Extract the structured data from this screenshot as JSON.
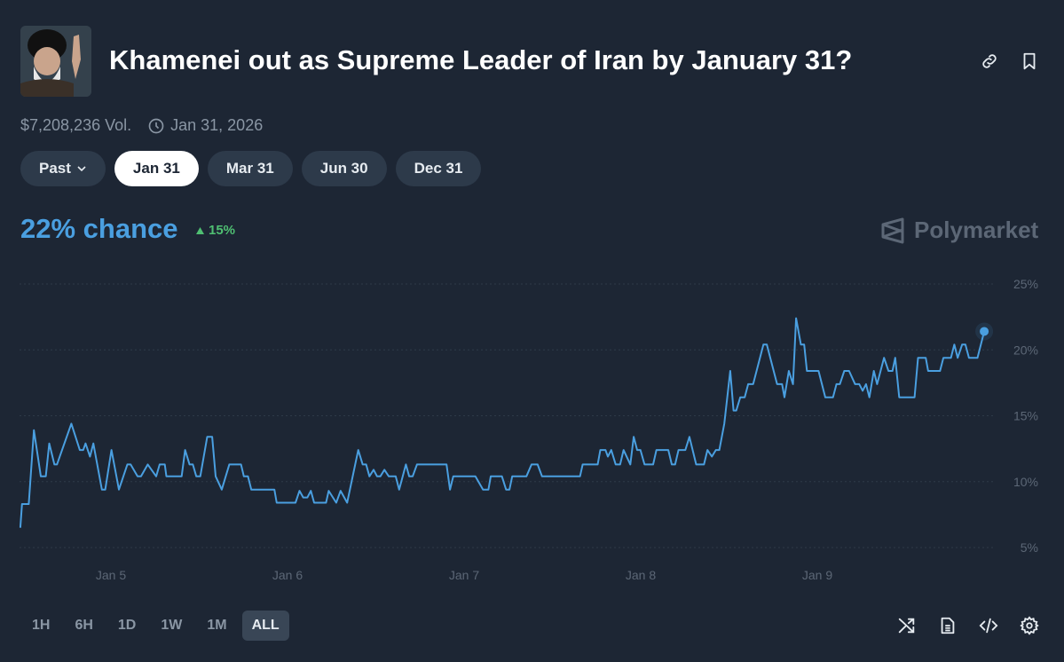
{
  "header": {
    "title": "Khamenei out as Supreme Leader of Iran by January 31?",
    "avatar_icon": "portrait-image",
    "actions": [
      {
        "icon": "link-icon"
      },
      {
        "icon": "bookmark-icon"
      }
    ],
    "volume": "$7,208,236 Vol.",
    "end_date": "Jan 31, 2026"
  },
  "date_tabs": [
    {
      "label": "Past",
      "dropdown": true,
      "active": false
    },
    {
      "label": "Jan 31",
      "active": true
    },
    {
      "label": "Mar 31",
      "active": false
    },
    {
      "label": "Jun 30",
      "active": false
    },
    {
      "label": "Dec 31",
      "active": false
    }
  ],
  "summary": {
    "chance": "22% chance",
    "delta": "15%",
    "delta_direction": "up",
    "delta_color": "#4fbf72"
  },
  "brand": "Polymarket",
  "ranges": [
    {
      "label": "1H"
    },
    {
      "label": "6H"
    },
    {
      "label": "1D"
    },
    {
      "label": "1W"
    },
    {
      "label": "1M"
    },
    {
      "label": "ALL",
      "active": true
    }
  ],
  "tools": [
    "shuffle-icon",
    "document-icon",
    "code-icon",
    "gear-icon"
  ],
  "chart_data": {
    "type": "line",
    "line_color": "#4a9fe0",
    "grid": true,
    "y_axis_position": "right",
    "ylim": [
      5,
      25
    ],
    "yticks": [
      "25%",
      "20%",
      "15%",
      "10%",
      "5%"
    ],
    "ytick_values": [
      25,
      20,
      15,
      10,
      5
    ],
    "xticks": [
      "Jan 5",
      "Jan 6",
      "Jan 7",
      "Jan 8",
      "Jan 9"
    ],
    "xtick_values": [
      "2026-01-05T00:00",
      "2026-01-06T00:00",
      "2026-01-07T00:00",
      "2026-01-08T00:00",
      "2026-01-09T00:00"
    ],
    "series": [
      {
        "points": [
          [
            "2026-01-04T11:41",
            6.5
          ],
          [
            "2026-01-04T11:55",
            8.3
          ],
          [
            "2026-01-04T12:50",
            8.3
          ],
          [
            "2026-01-04T13:32",
            13.9
          ],
          [
            "2026-01-04T14:28",
            10.4
          ],
          [
            "2026-01-04T15:09",
            10.4
          ],
          [
            "2026-01-04T15:37",
            12.9
          ],
          [
            "2026-01-04T16:19",
            11.3
          ],
          [
            "2026-01-04T16:40",
            11.3
          ],
          [
            "2026-01-04T18:37",
            14.4
          ],
          [
            "2026-01-04T19:46",
            12.4
          ],
          [
            "2026-01-04T20:14",
            12.4
          ],
          [
            "2026-01-04T20:33",
            12.9
          ],
          [
            "2026-01-04T21:09",
            11.9
          ],
          [
            "2026-01-04T21:37",
            12.9
          ],
          [
            "2026-01-04T22:46",
            9.4
          ],
          [
            "2026-01-04T23:14",
            9.4
          ],
          [
            "2026-01-05T00:04",
            12.4
          ],
          [
            "2026-01-05T01:05",
            9.4
          ],
          [
            "2026-01-05T02:14",
            11.3
          ],
          [
            "2026-01-05T02:41",
            11.3
          ],
          [
            "2026-01-05T03:37",
            10.4
          ],
          [
            "2026-01-05T04:05",
            10.4
          ],
          [
            "2026-01-05T05:00",
            11.3
          ],
          [
            "2026-01-05T06:09",
            10.4
          ],
          [
            "2026-01-05T06:37",
            11.3
          ],
          [
            "2026-01-05T07:19",
            11.3
          ],
          [
            "2026-01-05T07:32",
            10.4
          ],
          [
            "2026-01-05T09:37",
            10.4
          ],
          [
            "2026-01-05T10:05",
            12.4
          ],
          [
            "2026-01-05T10:41",
            11.3
          ],
          [
            "2026-01-05T11:08",
            11.3
          ],
          [
            "2026-01-05T11:36",
            10.4
          ],
          [
            "2026-01-05T12:09",
            10.4
          ],
          [
            "2026-01-05T13:05",
            13.4
          ],
          [
            "2026-01-05T13:46",
            13.4
          ],
          [
            "2026-01-05T14:14",
            10.4
          ],
          [
            "2026-01-05T15:04",
            9.4
          ],
          [
            "2026-01-05T16:05",
            11.3
          ],
          [
            "2026-01-05T17:41",
            11.3
          ],
          [
            "2026-01-05T18:04",
            10.4
          ],
          [
            "2026-01-05T18:37",
            10.4
          ],
          [
            "2026-01-05T19:05",
            9.4
          ],
          [
            "2026-01-05T22:13",
            9.4
          ],
          [
            "2026-01-05T22:32",
            8.4
          ],
          [
            "2026-01-06T01:05",
            8.4
          ],
          [
            "2026-01-06T01:38",
            9.3
          ],
          [
            "2026-01-06T02:08",
            8.8
          ],
          [
            "2026-01-06T02:42",
            8.8
          ],
          [
            "2026-01-06T03:10",
            9.3
          ],
          [
            "2026-01-06T03:37",
            8.4
          ],
          [
            "2026-01-06T05:14",
            8.4
          ],
          [
            "2026-01-06T05:36",
            9.3
          ],
          [
            "2026-01-06T06:37",
            8.4
          ],
          [
            "2026-01-06T07:13",
            9.3
          ],
          [
            "2026-01-06T08:06",
            8.4
          ],
          [
            "2026-01-06T09:37",
            12.4
          ],
          [
            "2026-01-06T10:13",
            11.3
          ],
          [
            "2026-01-06T10:41",
            11.3
          ],
          [
            "2026-01-06T11:08",
            10.4
          ],
          [
            "2026-01-06T11:42",
            10.9
          ],
          [
            "2026-01-06T12:10",
            10.4
          ],
          [
            "2026-01-06T12:37",
            10.4
          ],
          [
            "2026-01-06T13:10",
            10.9
          ],
          [
            "2026-01-06T13:46",
            10.4
          ],
          [
            "2026-01-06T14:42",
            10.4
          ],
          [
            "2026-01-06T15:10",
            9.4
          ],
          [
            "2026-01-06T16:05",
            11.3
          ],
          [
            "2026-01-06T16:32",
            10.4
          ],
          [
            "2026-01-06T17:00",
            10.4
          ],
          [
            "2026-01-06T17:36",
            11.3
          ],
          [
            "2026-01-06T21:37",
            11.3
          ],
          [
            "2026-01-06T22:05",
            9.4
          ],
          [
            "2026-01-06T22:32",
            10.4
          ],
          [
            "2026-01-07T01:32",
            10.4
          ],
          [
            "2026-01-07T02:34",
            9.4
          ],
          [
            "2026-01-07T03:18",
            9.4
          ],
          [
            "2026-01-07T03:37",
            10.4
          ],
          [
            "2026-01-07T05:08",
            10.4
          ],
          [
            "2026-01-07T05:42",
            9.4
          ],
          [
            "2026-01-07T06:10",
            9.4
          ],
          [
            "2026-01-07T06:32",
            10.4
          ],
          [
            "2026-01-07T08:28",
            10.4
          ],
          [
            "2026-01-07T09:10",
            11.3
          ],
          [
            "2026-01-07T09:59",
            11.3
          ],
          [
            "2026-01-07T10:35",
            10.4
          ],
          [
            "2026-01-07T15:45",
            10.4
          ],
          [
            "2026-01-07T16:07",
            11.3
          ],
          [
            "2026-01-07T18:09",
            11.3
          ],
          [
            "2026-01-07T18:31",
            12.4
          ],
          [
            "2026-01-07T19:13",
            12.4
          ],
          [
            "2026-01-07T19:32",
            11.9
          ],
          [
            "2026-01-07T20:00",
            12.4
          ],
          [
            "2026-01-07T20:36",
            11.3
          ],
          [
            "2026-01-07T21:12",
            11.3
          ],
          [
            "2026-01-07T21:40",
            12.4
          ],
          [
            "2026-01-07T22:35",
            11.3
          ],
          [
            "2026-01-07T23:03",
            13.4
          ],
          [
            "2026-01-07T23:31",
            12.4
          ],
          [
            "2026-01-07T23:58",
            12.4
          ],
          [
            "2026-01-08T00:31",
            11.3
          ],
          [
            "2026-01-08T01:41",
            11.3
          ],
          [
            "2026-01-08T02:08",
            12.4
          ],
          [
            "2026-01-08T03:45",
            12.4
          ],
          [
            "2026-01-08T04:13",
            11.3
          ],
          [
            "2026-01-08T04:41",
            11.3
          ],
          [
            "2026-01-08T05:08",
            12.4
          ],
          [
            "2026-01-08T06:04",
            12.4
          ],
          [
            "2026-01-08T06:37",
            13.4
          ],
          [
            "2026-01-08T07:32",
            11.3
          ],
          [
            "2026-01-08T08:36",
            11.3
          ],
          [
            "2026-01-08T09:04",
            12.4
          ],
          [
            "2026-01-08T09:40",
            11.9
          ],
          [
            "2026-01-08T10:13",
            12.4
          ],
          [
            "2026-01-08T10:41",
            12.4
          ],
          [
            "2026-01-08T11:22",
            14.4
          ],
          [
            "2026-01-08T12:10",
            18.4
          ],
          [
            "2026-01-08T12:37",
            15.4
          ],
          [
            "2026-01-08T12:59",
            15.4
          ],
          [
            "2026-01-08T13:32",
            16.4
          ],
          [
            "2026-01-08T14:08",
            16.4
          ],
          [
            "2026-01-08T14:36",
            17.4
          ],
          [
            "2026-01-08T15:17",
            17.4
          ],
          [
            "2026-01-08T16:41",
            20.4
          ],
          [
            "2026-01-08T17:08",
            20.4
          ],
          [
            "2026-01-08T18:32",
            17.4
          ],
          [
            "2026-01-08T19:13",
            17.4
          ],
          [
            "2026-01-08T19:32",
            16.4
          ],
          [
            "2026-01-08T20:08",
            18.4
          ],
          [
            "2026-01-08T20:42",
            17.4
          ],
          [
            "2026-01-08T21:07",
            22.4
          ],
          [
            "2026-01-08T21:46",
            20.4
          ],
          [
            "2026-01-08T22:13",
            20.4
          ],
          [
            "2026-01-08T22:35",
            18.4
          ],
          [
            "2026-01-09T00:10",
            18.4
          ],
          [
            "2026-01-09T01:05",
            16.4
          ],
          [
            "2026-01-09T02:08",
            16.4
          ],
          [
            "2026-01-09T02:36",
            17.4
          ],
          [
            "2026-01-09T03:04",
            17.4
          ],
          [
            "2026-01-09T03:40",
            18.4
          ],
          [
            "2026-01-09T04:19",
            18.4
          ],
          [
            "2026-01-09T05:08",
            17.4
          ],
          [
            "2026-01-09T05:42",
            17.4
          ],
          [
            "2026-01-09T06:10",
            16.9
          ],
          [
            "2026-01-09T06:37",
            17.4
          ],
          [
            "2026-01-09T07:05",
            16.4
          ],
          [
            "2026-01-09T07:41",
            18.4
          ],
          [
            "2026-01-09T08:08",
            17.4
          ],
          [
            "2026-01-09T09:04",
            19.4
          ],
          [
            "2026-01-09T09:40",
            18.4
          ],
          [
            "2026-01-09T10:13",
            18.4
          ],
          [
            "2026-01-09T10:35",
            19.4
          ],
          [
            "2026-01-09T11:08",
            16.4
          ],
          [
            "2026-01-09T13:13",
            16.4
          ],
          [
            "2026-01-09T13:41",
            19.4
          ],
          [
            "2026-01-09T14:44",
            19.4
          ],
          [
            "2026-01-09T15:04",
            18.4
          ],
          [
            "2026-01-09T16:41",
            18.4
          ],
          [
            "2026-01-09T17:08",
            19.4
          ],
          [
            "2026-01-09T18:10",
            19.4
          ],
          [
            "2026-01-09T18:37",
            20.4
          ],
          [
            "2026-01-09T19:05",
            19.4
          ],
          [
            "2026-01-09T19:41",
            20.4
          ],
          [
            "2026-01-09T20:08",
            20.4
          ],
          [
            "2026-01-09T20:37",
            19.4
          ],
          [
            "2026-01-09T21:46",
            19.4
          ],
          [
            "2026-01-09T22:41",
            21.4
          ]
        ]
      }
    ]
  }
}
